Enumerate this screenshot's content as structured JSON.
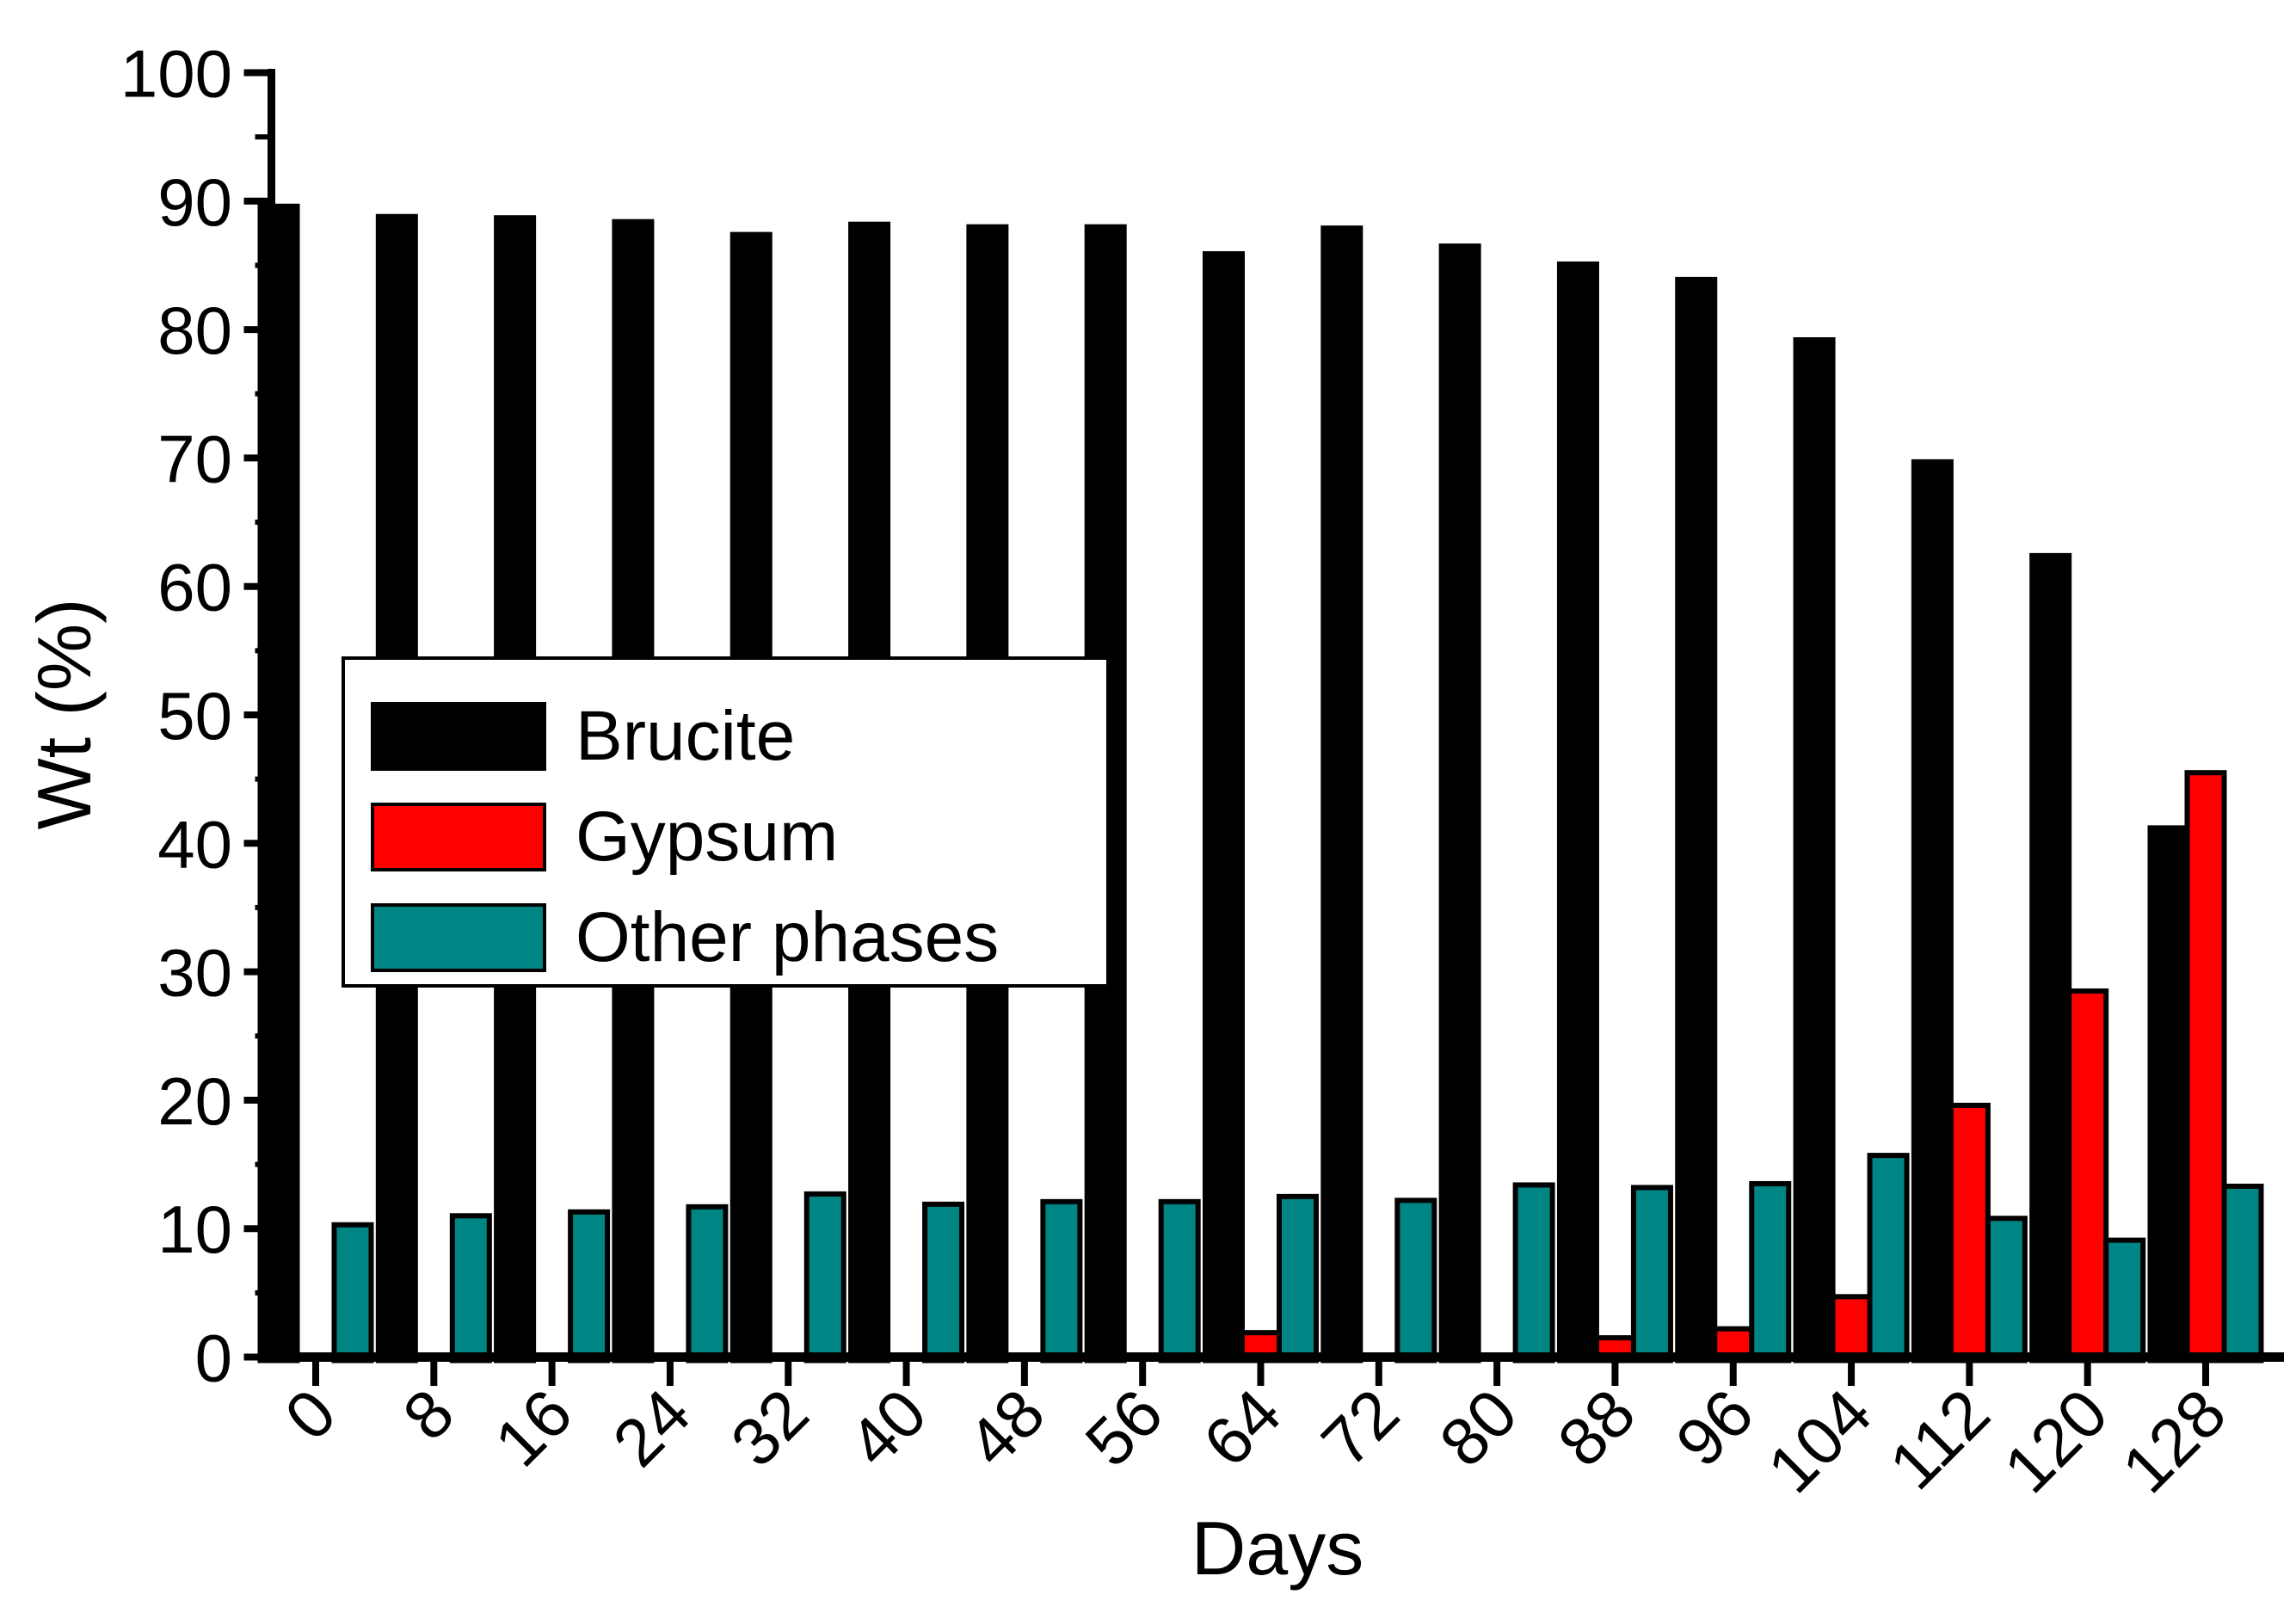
{
  "chart_data": {
    "type": "bar",
    "title": "",
    "xlabel": "Days",
    "ylabel": "Wt (%)",
    "ylim": [
      0,
      100
    ],
    "y_major_ticks": [
      0,
      10,
      20,
      30,
      40,
      50,
      60,
      70,
      80,
      90,
      100
    ],
    "y_minor_tick_step": 5,
    "grid": false,
    "legend_position": "upper-left-inside",
    "bar_outline_color": "#000000",
    "categories": [
      0,
      8,
      16,
      24,
      32,
      40,
      48,
      56,
      64,
      72,
      80,
      88,
      96,
      104,
      112,
      120,
      128
    ],
    "series": [
      {
        "name": "Brucite",
        "color": "#000000",
        "values": [
          89.6,
          88.8,
          88.7,
          88.4,
          87.4,
          88.2,
          88.0,
          88.0,
          85.9,
          87.9,
          86.5,
          85.1,
          83.9,
          79.2,
          69.7,
          62.4,
          41.2
        ]
      },
      {
        "name": "Gypsum",
        "color": "#ff0000",
        "values": [
          0,
          0,
          0,
          0,
          0,
          0,
          0,
          0,
          1.9,
          0,
          0,
          1.5,
          2.2,
          4.7,
          19.6,
          28.5,
          45.5
        ]
      },
      {
        "name": "Other phases",
        "color": "#008585",
        "values": [
          10.3,
          11.0,
          11.3,
          11.7,
          12.7,
          11.9,
          12.1,
          12.1,
          12.5,
          12.2,
          13.4,
          13.2,
          13.5,
          15.7,
          10.8,
          9.1,
          13.3
        ]
      }
    ]
  }
}
